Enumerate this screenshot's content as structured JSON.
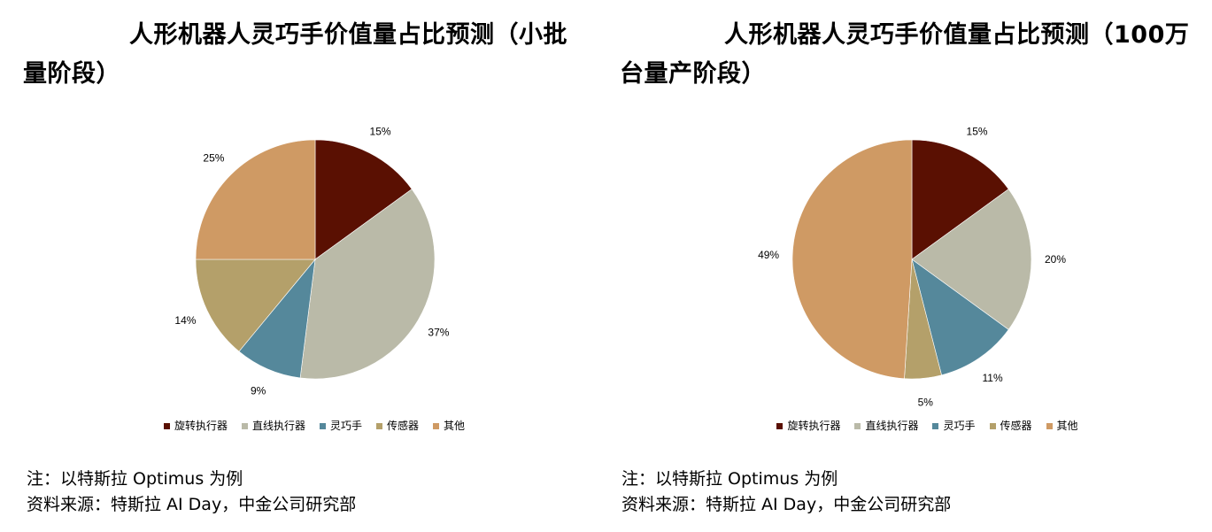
{
  "chart_data": [
    {
      "type": "pie",
      "title": "人形机器人灵巧手价值量占比预测（小批量阶段）",
      "categories": [
        "旋转执行器",
        "直线执行器",
        "灵巧手",
        "传感器",
        "其他"
      ],
      "values": [
        15,
        37,
        9,
        14,
        25
      ],
      "labels": [
        "15%",
        "37%",
        "9%",
        "14%",
        "25%"
      ],
      "colors": [
        "#5a1002",
        "#babaa8",
        "#55889b",
        "#b4a06a",
        "#cf9a64"
      ],
      "legend_position": "bottom"
    },
    {
      "type": "pie",
      "title": "人形机器人灵巧手价值量占比预测（100万台量产阶段）",
      "categories": [
        "旋转执行器",
        "直线执行器",
        "灵巧手",
        "传感器",
        "其他"
      ],
      "values": [
        15,
        20,
        11,
        5,
        49
      ],
      "labels": [
        "15%",
        "20%",
        "11%",
        "5%",
        "49%"
      ],
      "colors": [
        "#5a1002",
        "#babaa8",
        "#55889b",
        "#b4a06a",
        "#cf9a64"
      ],
      "legend_position": "bottom"
    }
  ],
  "notes": {
    "note": "注：以特斯拉 Optimus 为例",
    "source": "资料来源：特斯拉 AI Day，中金公司研究部"
  }
}
